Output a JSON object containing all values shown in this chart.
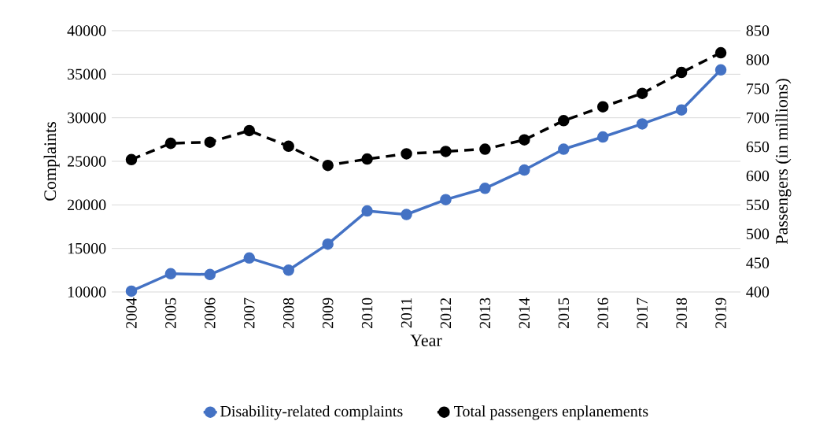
{
  "chart_data": {
    "type": "line",
    "xlabel": "Year",
    "ylabel": "Complaints",
    "y2label": "Passengers (in millions)",
    "categories": [
      "2004",
      "2005",
      "2006",
      "2007",
      "2008",
      "2009",
      "2010",
      "2011",
      "2012",
      "2013",
      "2014",
      "2015",
      "2016",
      "2017",
      "2018",
      "2019"
    ],
    "series": [
      {
        "name": "Disability-related complaints",
        "color": "#4472c4",
        "marker": "circle",
        "line_style": "solid",
        "values": [
          10100,
          12100,
          12000,
          13900,
          12500,
          15500,
          19300,
          18900,
          20600,
          21900,
          24000,
          26400,
          27800,
          29300,
          30900,
          35500
        ]
      },
      {
        "name": "Total passengers enplanements",
        "color": "#000000",
        "marker": "circle",
        "line_style": "dashed",
        "axis": "y2",
        "values": [
          628,
          656,
          658,
          678,
          651,
          618,
          629,
          638,
          642,
          646,
          662,
          695,
          719,
          742,
          778,
          812
        ]
      }
    ],
    "ylim": [
      10000,
      40000
    ],
    "yticks": [
      10000,
      15000,
      20000,
      25000,
      30000,
      35000,
      40000
    ],
    "y2lim": [
      400,
      850
    ],
    "y2ticks": [
      400,
      450,
      500,
      550,
      600,
      650,
      700,
      750,
      800,
      850
    ],
    "grid": "y",
    "legend": "bottom"
  }
}
